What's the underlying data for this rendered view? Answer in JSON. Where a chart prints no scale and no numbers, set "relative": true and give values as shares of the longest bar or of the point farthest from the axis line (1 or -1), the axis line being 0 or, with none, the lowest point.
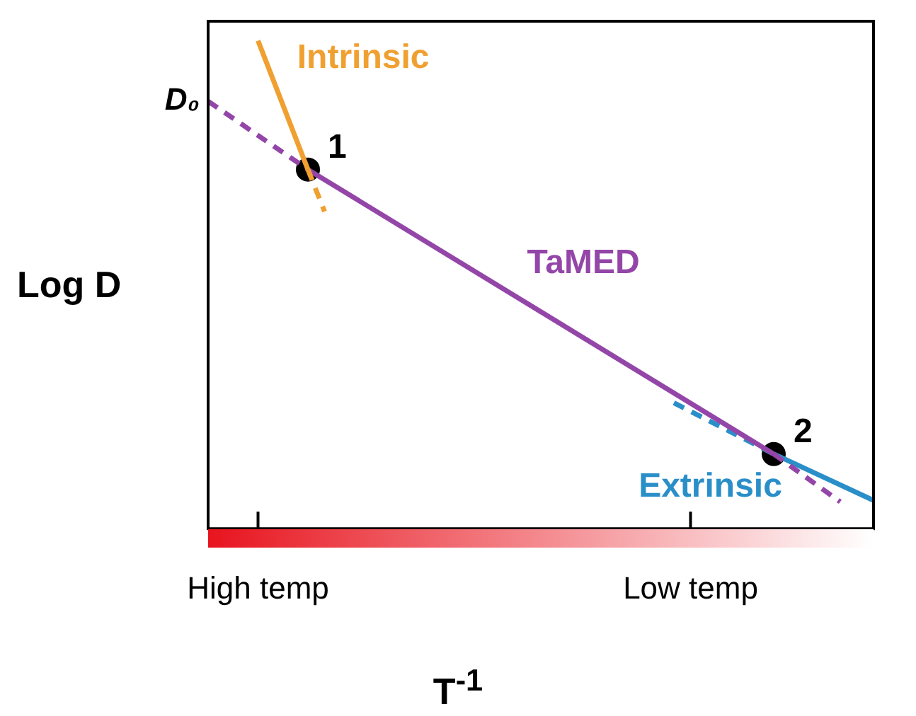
{
  "chart_data": {
    "type": "line",
    "relative": true,
    "xlabel": "T$^{-1}$",
    "ylabel": "Log D",
    "categories": [
      null,
      null,
      null,
      "High temp",
      null,
      null,
      null,
      null,
      null,
      null,
      null,
      null,
      null,
      null,
      null,
      null,
      null,
      null,
      null,
      null,
      null,
      null,
      null,
      null,
      null,
      null,
      null,
      null,
      null,
      "Low temp",
      null,
      null,
      null,
      null,
      null,
      null,
      null,
      null,
      null,
      null,
      null
    ],
    "series": [
      {
        "name": "Intrinsic",
        "color": "#f0a030",
        "line_style": "solid",
        "values": [
          null,
          null,
          null,
          1,
          null,
          null,
          0.736,
          null,
          null,
          null,
          null,
          null,
          null,
          null,
          null,
          null,
          null,
          null,
          null,
          null,
          null,
          null,
          null,
          null,
          null,
          null,
          null,
          null,
          null,
          null,
          null,
          null,
          null,
          null,
          null,
          null,
          null,
          null,
          null,
          null,
          null
        ]
      },
      {
        "color": "#f0a030",
        "line_style": "dashed",
        "values": [
          null,
          null,
          null,
          null,
          null,
          null,
          0.736,
          0.65,
          null,
          null,
          null,
          null,
          null,
          null,
          null,
          null,
          null,
          null,
          null,
          null,
          null,
          null,
          null,
          null,
          null,
          null,
          null,
          null,
          null,
          null,
          null,
          null,
          null,
          null,
          null,
          null,
          null,
          null,
          null,
          null,
          null
        ]
      },
      {
        "name": "TaMED",
        "color": "#9446a8",
        "line_style": "solid",
        "values": [
          null,
          null,
          null,
          null,
          null,
          null,
          0.736,
          null,
          null,
          null,
          null,
          null,
          null,
          null,
          null,
          null,
          null,
          null,
          null,
          null,
          null,
          null,
          null,
          null,
          null,
          null,
          null,
          null,
          null,
          null,
          null,
          null,
          null,
          null,
          0.153,
          null,
          null,
          null,
          null,
          null,
          null
        ]
      },
      {
        "color": "#9446a8",
        "line_style": "dashed",
        "values": [
          0.876,
          null,
          null,
          null,
          null,
          null,
          0.736,
          null,
          null,
          null,
          null,
          null,
          null,
          null,
          null,
          null,
          null,
          null,
          null,
          null,
          null,
          null,
          null,
          null,
          null,
          null,
          null,
          null,
          null,
          null,
          null,
          null,
          null,
          null,
          null,
          null,
          null,
          null,
          null,
          null,
          null
        ]
      },
      {
        "color": "#9446a8",
        "line_style": "dashed",
        "values": [
          null,
          null,
          null,
          null,
          null,
          null,
          null,
          null,
          null,
          null,
          null,
          null,
          null,
          null,
          null,
          null,
          null,
          null,
          null,
          null,
          null,
          null,
          null,
          null,
          null,
          null,
          null,
          null,
          null,
          null,
          null,
          null,
          null,
          null,
          0.153,
          null,
          null,
          null,
          0.055,
          null,
          null
        ]
      },
      {
        "name": "Extrinsic",
        "color": "#2a8fc8",
        "line_style": "solid",
        "values": [
          null,
          null,
          null,
          null,
          null,
          null,
          null,
          null,
          null,
          null,
          null,
          null,
          null,
          null,
          null,
          null,
          null,
          null,
          null,
          null,
          null,
          null,
          null,
          null,
          null,
          null,
          null,
          null,
          null,
          null,
          null,
          null,
          null,
          null,
          0.153,
          null,
          null,
          null,
          null,
          null,
          0.058
        ]
      },
      {
        "color": "#2a8fc8",
        "line_style": "dashed",
        "values": [
          null,
          null,
          null,
          null,
          null,
          null,
          null,
          null,
          null,
          null,
          null,
          null,
          null,
          null,
          null,
          null,
          null,
          null,
          null,
          null,
          null,
          null,
          null,
          null,
          null,
          null,
          null,
          null,
          0.258,
          null,
          null,
          null,
          null,
          null,
          0.153,
          null,
          null,
          null,
          null,
          null,
          null
        ]
      },
      {
        "type": "scatter",
        "color": "#000000",
        "marker": "circle",
        "values": [
          null,
          null,
          null,
          null,
          null,
          null,
          0.736,
          null,
          null,
          null,
          null,
          null,
          null,
          null,
          null,
          null,
          null,
          null,
          null,
          null,
          null,
          null,
          null,
          null,
          null,
          null,
          null,
          null,
          null,
          null,
          null,
          null,
          null,
          null,
          0.153,
          null,
          null,
          null,
          null,
          null,
          null
        ]
      }
    ],
    "annotations": [
      "D₀",
      "1",
      "2"
    ]
  }
}
